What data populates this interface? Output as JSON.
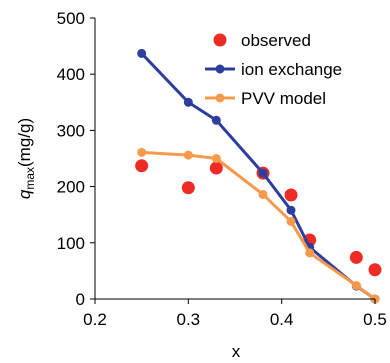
{
  "chart_data": {
    "type": "scatter",
    "xlabel": "x",
    "ylabel": "q",
    "ylabel_sub": "max",
    "ylabel_unit": "(mg/g)",
    "xlim": [
      0.2,
      0.5
    ],
    "ylim": [
      0,
      500
    ],
    "xticks": [
      "0.2",
      "0.3",
      "0.4",
      "0.5"
    ],
    "yticks": [
      "0",
      "100",
      "200",
      "300",
      "400",
      "500"
    ],
    "grid": false,
    "legend_position": "top-right",
    "series": [
      {
        "name": "observed",
        "kind": "points",
        "color": "#ee2b24",
        "x": [
          0.25,
          0.3,
          0.33,
          0.38,
          0.41,
          0.43,
          0.48,
          0.5
        ],
        "y": [
          237,
          198,
          233,
          224,
          185,
          105,
          74,
          52
        ]
      },
      {
        "name": "ion exchange",
        "kind": "line-markers",
        "color": "#2e3e9c",
        "x": [
          0.25,
          0.3,
          0.33,
          0.38,
          0.41,
          0.43,
          0.48,
          0.5
        ],
        "y": [
          437,
          350,
          318,
          224,
          158,
          92,
          23,
          0
        ]
      },
      {
        "name": "PVV model",
        "kind": "line-markers",
        "color": "#f59a4b",
        "x": [
          0.25,
          0.3,
          0.33,
          0.38,
          0.41,
          0.43,
          0.48,
          0.5
        ],
        "y": [
          261,
          256,
          250,
          186,
          138,
          82,
          24,
          0
        ]
      }
    ]
  }
}
